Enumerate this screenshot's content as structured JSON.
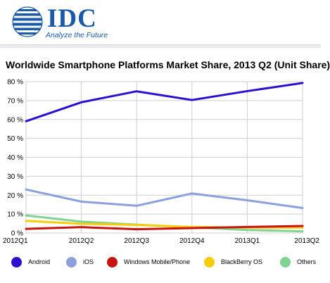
{
  "header": {
    "logo_text": "IDC",
    "tagline": "Analyze the Future"
  },
  "chart_data": {
    "type": "line",
    "title": "Worldwide Smartphone Platforms Market Share, 2013 Q2 (Unit Share)",
    "categories": [
      "2012Q1",
      "2012Q2",
      "2012Q3",
      "2012Q4",
      "2013Q1",
      "2013Q2"
    ],
    "ylim": [
      0,
      80
    ],
    "yticks": [
      "0 %",
      "10 %",
      "20 %",
      "30 %",
      "40 %",
      "50 %",
      "60 %",
      "70 %",
      "80 %"
    ],
    "grid": true,
    "legend_position": "bottom",
    "series": [
      {
        "name": "Android",
        "color": "#2e0fcf",
        "values": [
          59.1,
          69.1,
          74.9,
          70.3,
          75.0,
          79.3
        ]
      },
      {
        "name": "iOS",
        "color": "#8ba0dc",
        "values": [
          23.0,
          16.6,
          14.4,
          20.9,
          17.3,
          13.2
        ]
      },
      {
        "name": "Windows Mobile/Phone",
        "color": "#c8140f",
        "values": [
          2.2,
          3.1,
          2.0,
          2.6,
          3.2,
          3.7
        ]
      },
      {
        "name": "BlackBerry OS",
        "color": "#f7cd0a",
        "values": [
          6.4,
          4.9,
          4.3,
          3.2,
          2.9,
          2.9
        ]
      },
      {
        "name": "Others",
        "color": "#7fd393",
        "values": [
          9.3,
          6.0,
          4.4,
          3.0,
          1.6,
          0.9
        ]
      }
    ]
  }
}
